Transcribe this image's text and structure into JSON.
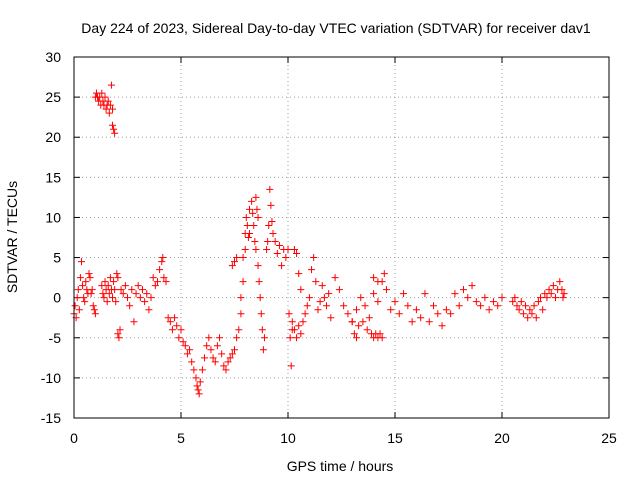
{
  "chart_data": {
    "type": "scatter",
    "title": "Day 224 of 2023, Sidereal Day-to-day VTEC variation (SDTVAR) for receiver dav1",
    "xlabel": "GPS time / hours",
    "ylabel": "SDTVAR / TECUs",
    "xlim": [
      0,
      25
    ],
    "ylim": [
      -15,
      30
    ],
    "x_ticks": [
      0,
      5,
      10,
      15,
      20,
      25
    ],
    "y_ticks": [
      -15,
      -10,
      -5,
      0,
      5,
      10,
      15,
      20,
      25,
      30
    ],
    "x_tick_labels": [
      "0",
      "5",
      "10",
      "15",
      "20",
      "25"
    ],
    "y_tick_labels": [
      "-15",
      "-10",
      "-5",
      "0",
      "5",
      "10",
      "15",
      "20",
      "25",
      "30"
    ],
    "grid": true,
    "marker": "plus",
    "color": "#ff0000",
    "series": [
      {
        "name": "SDTVAR",
        "points": [
          [
            0.0,
            -2.0
          ],
          [
            0.05,
            -1.0
          ],
          [
            0.1,
            -2.5
          ],
          [
            0.15,
            0.0
          ],
          [
            0.2,
            1.0
          ],
          [
            0.25,
            -1.5
          ],
          [
            0.3,
            2.5
          ],
          [
            0.35,
            4.5
          ],
          [
            0.4,
            1.5
          ],
          [
            0.45,
            0.0
          ],
          [
            0.5,
            -0.5
          ],
          [
            0.55,
            2.0
          ],
          [
            0.6,
            1.0
          ],
          [
            0.65,
            0.5
          ],
          [
            0.7,
            3.0
          ],
          [
            0.75,
            2.5
          ],
          [
            0.8,
            0.5
          ],
          [
            0.85,
            1.0
          ],
          [
            0.9,
            -1.0
          ],
          [
            0.95,
            -1.5
          ],
          [
            1.0,
            -2.0
          ],
          [
            1.0,
            25.0
          ],
          [
            1.05,
            25.5
          ],
          [
            1.1,
            25.0
          ],
          [
            1.15,
            24.5
          ],
          [
            1.2,
            25.0
          ],
          [
            1.25,
            24.0
          ],
          [
            1.3,
            25.5
          ],
          [
            1.35,
            24.5
          ],
          [
            1.4,
            24.0
          ],
          [
            1.45,
            25.0
          ],
          [
            1.5,
            23.5
          ],
          [
            1.55,
            24.0
          ],
          [
            1.6,
            24.5
          ],
          [
            1.65,
            23.0
          ],
          [
            1.7,
            24.0
          ],
          [
            1.75,
            26.5
          ],
          [
            1.8,
            23.5
          ],
          [
            1.8,
            21.5
          ],
          [
            1.85,
            21.0
          ],
          [
            1.9,
            20.5
          ],
          [
            1.3,
            1.5
          ],
          [
            1.35,
            0.5
          ],
          [
            1.4,
            0.0
          ],
          [
            1.45,
            2.0
          ],
          [
            1.5,
            1.0
          ],
          [
            1.55,
            -0.5
          ],
          [
            1.6,
            1.5
          ],
          [
            1.65,
            0.5
          ],
          [
            1.7,
            2.5
          ],
          [
            1.75,
            1.0
          ],
          [
            1.8,
            0.0
          ],
          [
            1.85,
            2.0
          ],
          [
            1.9,
            1.0
          ],
          [
            1.95,
            -0.5
          ],
          [
            2.0,
            3.0
          ],
          [
            2.05,
            2.5
          ],
          [
            2.05,
            -4.5
          ],
          [
            2.1,
            -5.0
          ],
          [
            2.15,
            -4.0
          ],
          [
            2.2,
            1.0
          ],
          [
            2.3,
            0.5
          ],
          [
            2.4,
            1.5
          ],
          [
            2.5,
            0.0
          ],
          [
            2.6,
            -1.0
          ],
          [
            2.7,
            1.0
          ],
          [
            2.8,
            -3.0
          ],
          [
            2.9,
            0.5
          ],
          [
            3.0,
            1.5
          ],
          [
            3.1,
            0.0
          ],
          [
            3.2,
            1.0
          ],
          [
            3.3,
            -0.5
          ],
          [
            3.4,
            0.5
          ],
          [
            3.5,
            -1.5
          ],
          [
            3.6,
            0.0
          ],
          [
            3.7,
            2.5
          ],
          [
            3.8,
            1.5
          ],
          [
            3.9,
            2.0
          ],
          [
            4.0,
            3.5
          ],
          [
            4.1,
            4.5
          ],
          [
            4.15,
            5.0
          ],
          [
            4.2,
            2.5
          ],
          [
            4.3,
            2.0
          ],
          [
            4.4,
            -2.5
          ],
          [
            4.5,
            -3.0
          ],
          [
            4.6,
            -4.0
          ],
          [
            4.7,
            -2.5
          ],
          [
            4.8,
            -3.5
          ],
          [
            4.9,
            -5.0
          ],
          [
            5.0,
            -4.0
          ],
          [
            5.1,
            -5.5
          ],
          [
            5.2,
            -6.0
          ],
          [
            5.3,
            -7.0
          ],
          [
            5.4,
            -6.5
          ],
          [
            5.5,
            -8.0
          ],
          [
            5.6,
            -9.0
          ],
          [
            5.7,
            -10.0
          ],
          [
            5.75,
            -11.0
          ],
          [
            5.8,
            -11.5
          ],
          [
            5.85,
            -12.0
          ],
          [
            5.9,
            -10.5
          ],
          [
            6.0,
            -9.0
          ],
          [
            6.1,
            -7.5
          ],
          [
            6.2,
            -6.0
          ],
          [
            6.3,
            -5.0
          ],
          [
            6.4,
            -6.5
          ],
          [
            6.5,
            -7.5
          ],
          [
            6.6,
            -8.0
          ],
          [
            6.7,
            -6.0
          ],
          [
            6.8,
            -5.0
          ],
          [
            6.9,
            -7.0
          ],
          [
            7.0,
            -8.5
          ],
          [
            7.1,
            -9.0
          ],
          [
            7.2,
            -8.0
          ],
          [
            7.3,
            -7.5
          ],
          [
            7.4,
            -7.0
          ],
          [
            7.4,
            4.0
          ],
          [
            7.5,
            4.5
          ],
          [
            7.6,
            5.0
          ],
          [
            7.5,
            -6.5
          ],
          [
            7.6,
            -5.0
          ],
          [
            7.7,
            -4.0
          ],
          [
            7.8,
            -2.0
          ],
          [
            7.8,
            0.0
          ],
          [
            7.9,
            2.0
          ],
          [
            7.9,
            5.0
          ],
          [
            8.0,
            6.0
          ],
          [
            8.0,
            8.0
          ],
          [
            8.05,
            10.0
          ],
          [
            8.1,
            9.0
          ],
          [
            8.15,
            7.5
          ],
          [
            8.2,
            8.0
          ],
          [
            8.2,
            11.0
          ],
          [
            8.3,
            12.0
          ],
          [
            8.35,
            10.5
          ],
          [
            8.4,
            9.0
          ],
          [
            8.45,
            7.0
          ],
          [
            8.5,
            6.0
          ],
          [
            8.5,
            12.5
          ],
          [
            8.55,
            11.0
          ],
          [
            8.6,
            10.0
          ],
          [
            8.6,
            4.0
          ],
          [
            8.65,
            2.0
          ],
          [
            8.7,
            0.0
          ],
          [
            8.75,
            -2.0
          ],
          [
            8.8,
            -4.0
          ],
          [
            8.85,
            -6.5
          ],
          [
            8.9,
            -5.0
          ],
          [
            9.0,
            6.0
          ],
          [
            9.05,
            7.0
          ],
          [
            9.1,
            9.0
          ],
          [
            9.15,
            13.5
          ],
          [
            9.2,
            11.5
          ],
          [
            9.25,
            9.5
          ],
          [
            9.3,
            8.0
          ],
          [
            9.4,
            7.0
          ],
          [
            9.5,
            5.5
          ],
          [
            9.6,
            6.5
          ],
          [
            9.7,
            4.0
          ],
          [
            9.8,
            6.0
          ],
          [
            9.9,
            5.0
          ],
          [
            10.0,
            6.0
          ],
          [
            10.05,
            -2.0
          ],
          [
            10.1,
            -5.0
          ],
          [
            10.15,
            -8.5
          ],
          [
            10.2,
            -4.0
          ],
          [
            10.3,
            6.0
          ],
          [
            10.4,
            5.5
          ],
          [
            10.5,
            3.0
          ],
          [
            10.6,
            1.0
          ],
          [
            10.2,
            -3.0
          ],
          [
            10.3,
            -4.0
          ],
          [
            10.4,
            -5.0
          ],
          [
            10.5,
            -3.5
          ],
          [
            10.6,
            -4.5
          ],
          [
            10.7,
            -3.0
          ],
          [
            10.8,
            -2.0
          ],
          [
            10.9,
            -1.0
          ],
          [
            11.0,
            0.0
          ],
          [
            11.1,
            3.5
          ],
          [
            11.2,
            5.0
          ],
          [
            11.3,
            2.0
          ],
          [
            11.4,
            -1.5
          ],
          [
            11.5,
            -0.5
          ],
          [
            11.6,
            1.5
          ],
          [
            11.7,
            0.0
          ],
          [
            11.8,
            -1.0
          ],
          [
            11.9,
            0.5
          ],
          [
            12.0,
            -2.5
          ],
          [
            12.2,
            2.5
          ],
          [
            12.4,
            1.0
          ],
          [
            12.6,
            -1.0
          ],
          [
            12.8,
            -2.0
          ],
          [
            13.0,
            -3.0
          ],
          [
            13.2,
            -1.5
          ],
          [
            13.4,
            0.0
          ],
          [
            13.6,
            -1.0
          ],
          [
            13.8,
            -2.5
          ],
          [
            14.0,
            0.5
          ],
          [
            14.2,
            -0.5
          ],
          [
            14.4,
            2.0
          ],
          [
            14.6,
            1.0
          ],
          [
            14.8,
            -1.5
          ],
          [
            15.0,
            -0.5
          ],
          [
            15.2,
            -2.0
          ],
          [
            15.4,
            0.5
          ],
          [
            15.6,
            -1.0
          ],
          [
            15.8,
            -3.0
          ],
          [
            16.0,
            -1.5
          ],
          [
            16.2,
            -2.5
          ],
          [
            16.4,
            0.5
          ],
          [
            16.6,
            -3.0
          ],
          [
            16.8,
            -1.0
          ],
          [
            17.0,
            -2.0
          ],
          [
            17.2,
            -3.5
          ],
          [
            17.4,
            -1.5
          ],
          [
            17.6,
            -2.0
          ],
          [
            17.8,
            0.5
          ],
          [
            18.0,
            -1.0
          ],
          [
            18.2,
            1.0
          ],
          [
            18.4,
            0.0
          ],
          [
            18.6,
            1.5
          ],
          [
            18.8,
            -0.5
          ],
          [
            19.0,
            -1.0
          ],
          [
            19.2,
            0.0
          ],
          [
            19.4,
            -1.5
          ],
          [
            19.6,
            -0.5
          ],
          [
            19.8,
            -1.0
          ],
          [
            20.0,
            0.0
          ],
          [
            13.0,
            -3.0
          ],
          [
            13.1,
            -4.5
          ],
          [
            13.2,
            -5.0
          ],
          [
            13.3,
            -3.5
          ],
          [
            13.5,
            -3.0
          ],
          [
            13.7,
            -4.0
          ],
          [
            13.9,
            -4.5
          ],
          [
            14.0,
            -5.0
          ],
          [
            14.1,
            -4.5
          ],
          [
            14.2,
            -5.0
          ],
          [
            14.3,
            -4.5
          ],
          [
            14.4,
            -5.0
          ],
          [
            14.0,
            2.5
          ],
          [
            14.2,
            2.0
          ],
          [
            14.5,
            3.0
          ],
          [
            20.5,
            -0.5
          ],
          [
            20.6,
            0.0
          ],
          [
            20.7,
            -1.0
          ],
          [
            20.8,
            -1.5
          ],
          [
            20.9,
            -0.5
          ],
          [
            21.0,
            -2.0
          ],
          [
            21.1,
            -1.0
          ],
          [
            21.2,
            -2.5
          ],
          [
            21.3,
            -1.5
          ],
          [
            21.4,
            -2.0
          ],
          [
            21.5,
            -1.0
          ],
          [
            21.6,
            -2.5
          ],
          [
            21.7,
            -0.5
          ],
          [
            21.8,
            0.0
          ],
          [
            21.9,
            -1.5
          ],
          [
            22.0,
            0.5
          ],
          [
            22.1,
            0.0
          ],
          [
            22.2,
            1.0
          ],
          [
            22.3,
            0.5
          ],
          [
            22.4,
            1.5
          ],
          [
            22.5,
            0.0
          ],
          [
            22.6,
            1.0
          ],
          [
            22.7,
            2.0
          ],
          [
            22.8,
            1.0
          ],
          [
            22.85,
            0.0
          ],
          [
            22.9,
            0.5
          ]
        ]
      }
    ]
  }
}
